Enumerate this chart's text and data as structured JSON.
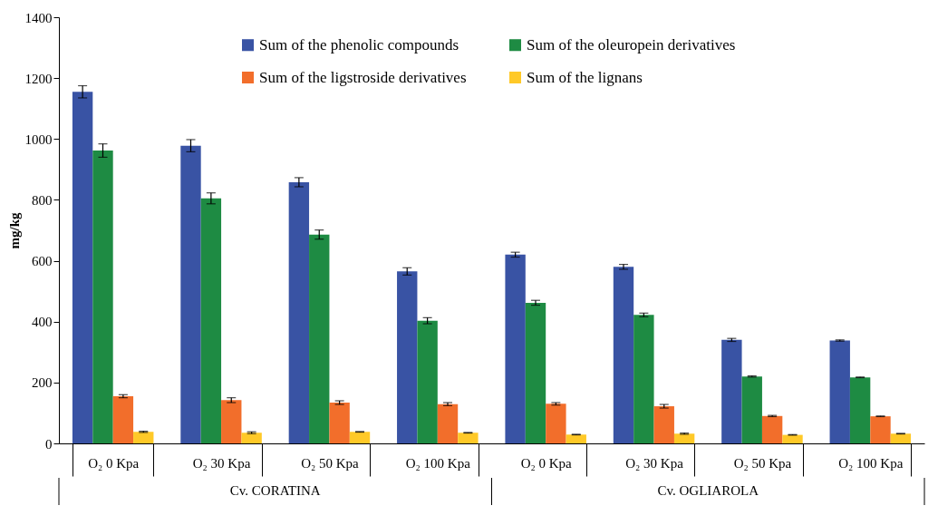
{
  "chart_data": {
    "type": "bar",
    "ylabel": "mg/kg",
    "categories": [
      "O₂ 0 Kpa",
      "O₂ 30 Kpa",
      "O₂ 50 Kpa",
      "O₂ 100 Kpa",
      "O₂ 0 Kpa",
      "O₂ 30 Kpa",
      "O₂ 50 Kpa",
      "O₂ 100 Kpa"
    ],
    "series": [
      {
        "name": "Sum of the phenolic compounds",
        "color": "#3953a4",
        "values": [
          1155,
          978,
          858,
          565,
          620,
          580,
          340,
          338
        ],
        "errors": [
          20,
          20,
          15,
          12,
          8,
          8,
          5,
          2
        ]
      },
      {
        "name": "Sum of the oleuropein derivatives",
        "color": "#1e8b43",
        "values": [
          962,
          805,
          686,
          403,
          462,
          422,
          220,
          217
        ],
        "errors": [
          22,
          18,
          15,
          10,
          8,
          6,
          2,
          1
        ]
      },
      {
        "name": "Sum of the ligstroside derivatives",
        "color": "#f26e2b",
        "values": [
          155,
          142,
          134,
          129,
          130,
          122,
          90,
          89
        ],
        "errors": [
          5,
          8,
          6,
          5,
          4,
          6,
          2,
          1
        ]
      },
      {
        "name": "Sum of the lignans",
        "color": "#ffc928",
        "values": [
          38,
          35,
          38,
          35,
          29,
          32,
          28,
          32
        ],
        "errors": [
          2,
          3,
          1,
          1,
          1,
          2,
          1,
          1
        ]
      }
    ],
    "ylim": [
      0,
      1400
    ],
    "yticks": [
      0,
      200,
      400,
      600,
      800,
      1000,
      1200,
      1400
    ],
    "legend": "top right",
    "grid": false,
    "annotations": [
      "Cv. CORATINA",
      "Cv. OGLIAROLA"
    ]
  }
}
